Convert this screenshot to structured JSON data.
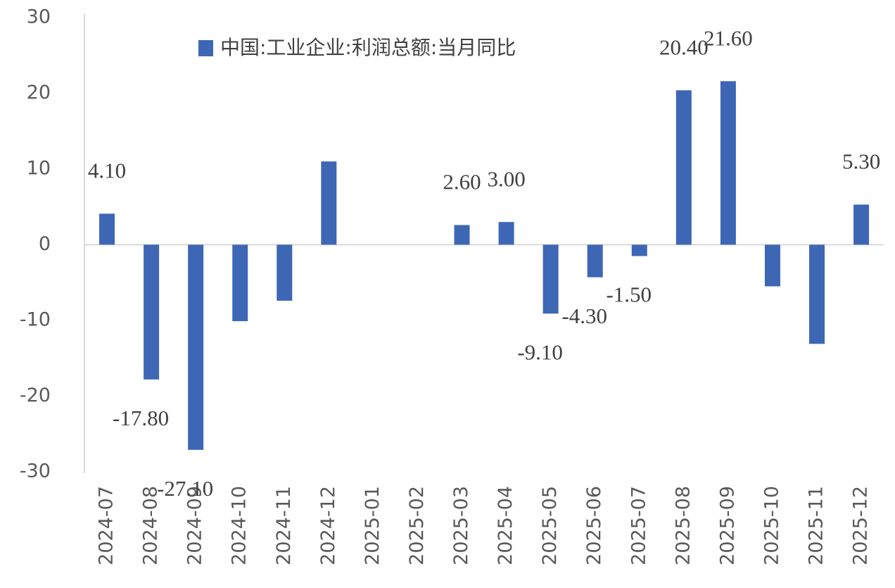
{
  "chart_data": {
    "type": "bar",
    "categories": [
      "2024-07",
      "2024-08",
      "2024-09",
      "2024-10",
      "2024-11",
      "2024-12",
      "2025-01",
      "2025-02",
      "2025-03",
      "2025-04",
      "2025-05",
      "2025-06",
      "2025-07",
      "2025-08",
      "2025-09",
      "2025-10",
      "2025-11",
      "2025-12"
    ],
    "series": [
      {
        "name": "中国:工业企业:利润总额:当月同比",
        "color": "#3d67b5",
        "values": [
          4.1,
          -17.8,
          -27.1,
          -10.1,
          -7.4,
          11.0,
          null,
          null,
          2.6,
          3.0,
          -9.1,
          -4.3,
          -1.5,
          20.4,
          21.6,
          -5.5,
          -13.1,
          5.3
        ],
        "value_labels": [
          "4.10",
          "-17.80",
          "-27.10",
          null,
          null,
          null,
          null,
          null,
          "2.60",
          "3.00",
          "-9.10",
          "-4.30",
          "-1.50",
          "20.40",
          "21.60",
          null,
          null,
          "5.30"
        ]
      }
    ],
    "ylim": [
      -30,
      30
    ],
    "yticks": [
      -30,
      -20,
      -10,
      0,
      10,
      20,
      30
    ],
    "legend": "top"
  }
}
